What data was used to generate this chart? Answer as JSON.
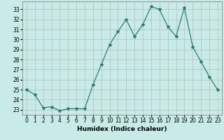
{
  "x": [
    0,
    1,
    2,
    3,
    4,
    5,
    6,
    7,
    8,
    9,
    10,
    11,
    12,
    13,
    14,
    15,
    16,
    17,
    18,
    19,
    20,
    21,
    22,
    23
  ],
  "y": [
    25.0,
    24.5,
    23.2,
    23.3,
    22.9,
    23.1,
    23.1,
    23.1,
    25.5,
    27.5,
    29.5,
    30.8,
    32.0,
    30.3,
    31.5,
    33.3,
    33.0,
    31.3,
    30.3,
    33.2,
    29.3,
    27.8,
    26.3,
    25.0
  ],
  "line_color": "#2e7d6e",
  "marker": "*",
  "marker_size": 3,
  "bg_color": "#c8ebe8",
  "grid_color": "#b0b0b0",
  "xlabel": "Humidex (Indice chaleur)",
  "ylim": [
    22.5,
    33.8
  ],
  "xlim": [
    -0.5,
    23.5
  ],
  "yticks": [
    23,
    24,
    25,
    26,
    27,
    28,
    29,
    30,
    31,
    32,
    33
  ],
  "xticks": [
    0,
    1,
    2,
    3,
    4,
    5,
    6,
    7,
    8,
    9,
    10,
    11,
    12,
    13,
    14,
    15,
    16,
    17,
    18,
    19,
    20,
    21,
    22,
    23
  ],
  "label_fontsize": 6.5,
  "tick_fontsize": 5.5
}
